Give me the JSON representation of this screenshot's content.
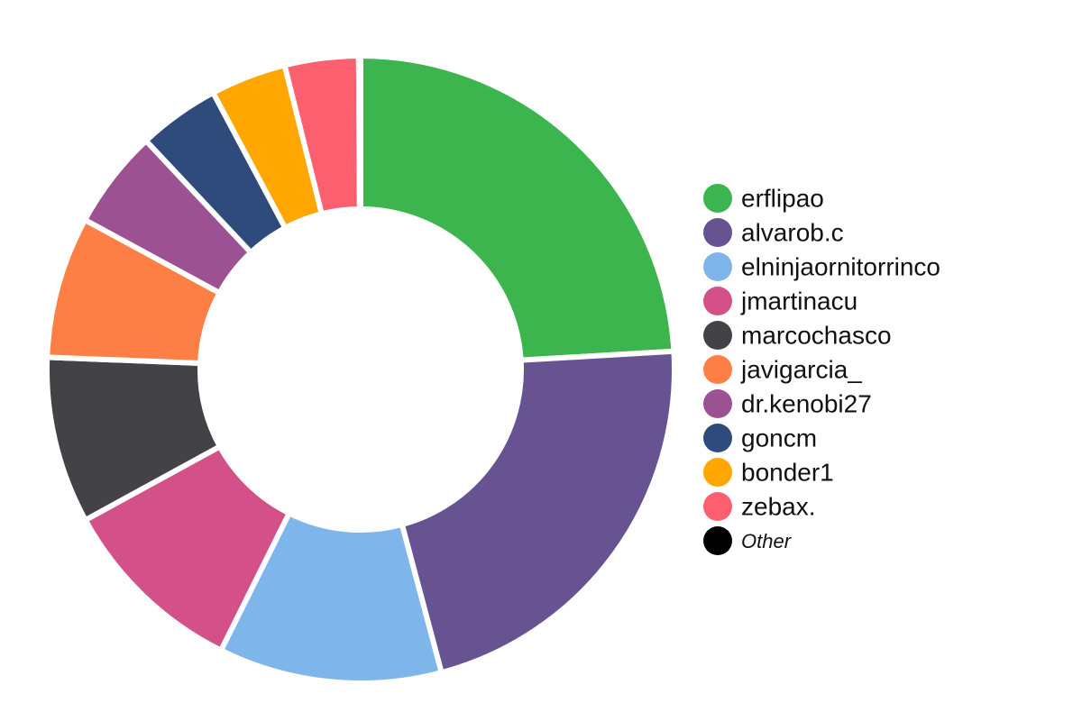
{
  "chart_data": {
    "type": "donut",
    "categories": [
      "erflipao",
      "alvarob.c",
      "elninjaornitorrinco",
      "jmartinacu",
      "marcochasco",
      "javigarcia_",
      "dr.kenobi27",
      "goncm",
      "bonder1",
      "zebax.",
      "Other"
    ],
    "values": [
      24.1,
      21.8,
      11.5,
      9.7,
      8.6,
      7.3,
      5.1,
      4.2,
      3.9,
      3.8,
      0.1
    ],
    "colors": [
      "#3db54e",
      "#675392",
      "#7eb5ea",
      "#d35188",
      "#434247",
      "#fd7f46",
      "#9c5193",
      "#2f4b7c",
      "#ffa600",
      "#fc5f6d",
      "#000000"
    ],
    "legend": "right"
  }
}
